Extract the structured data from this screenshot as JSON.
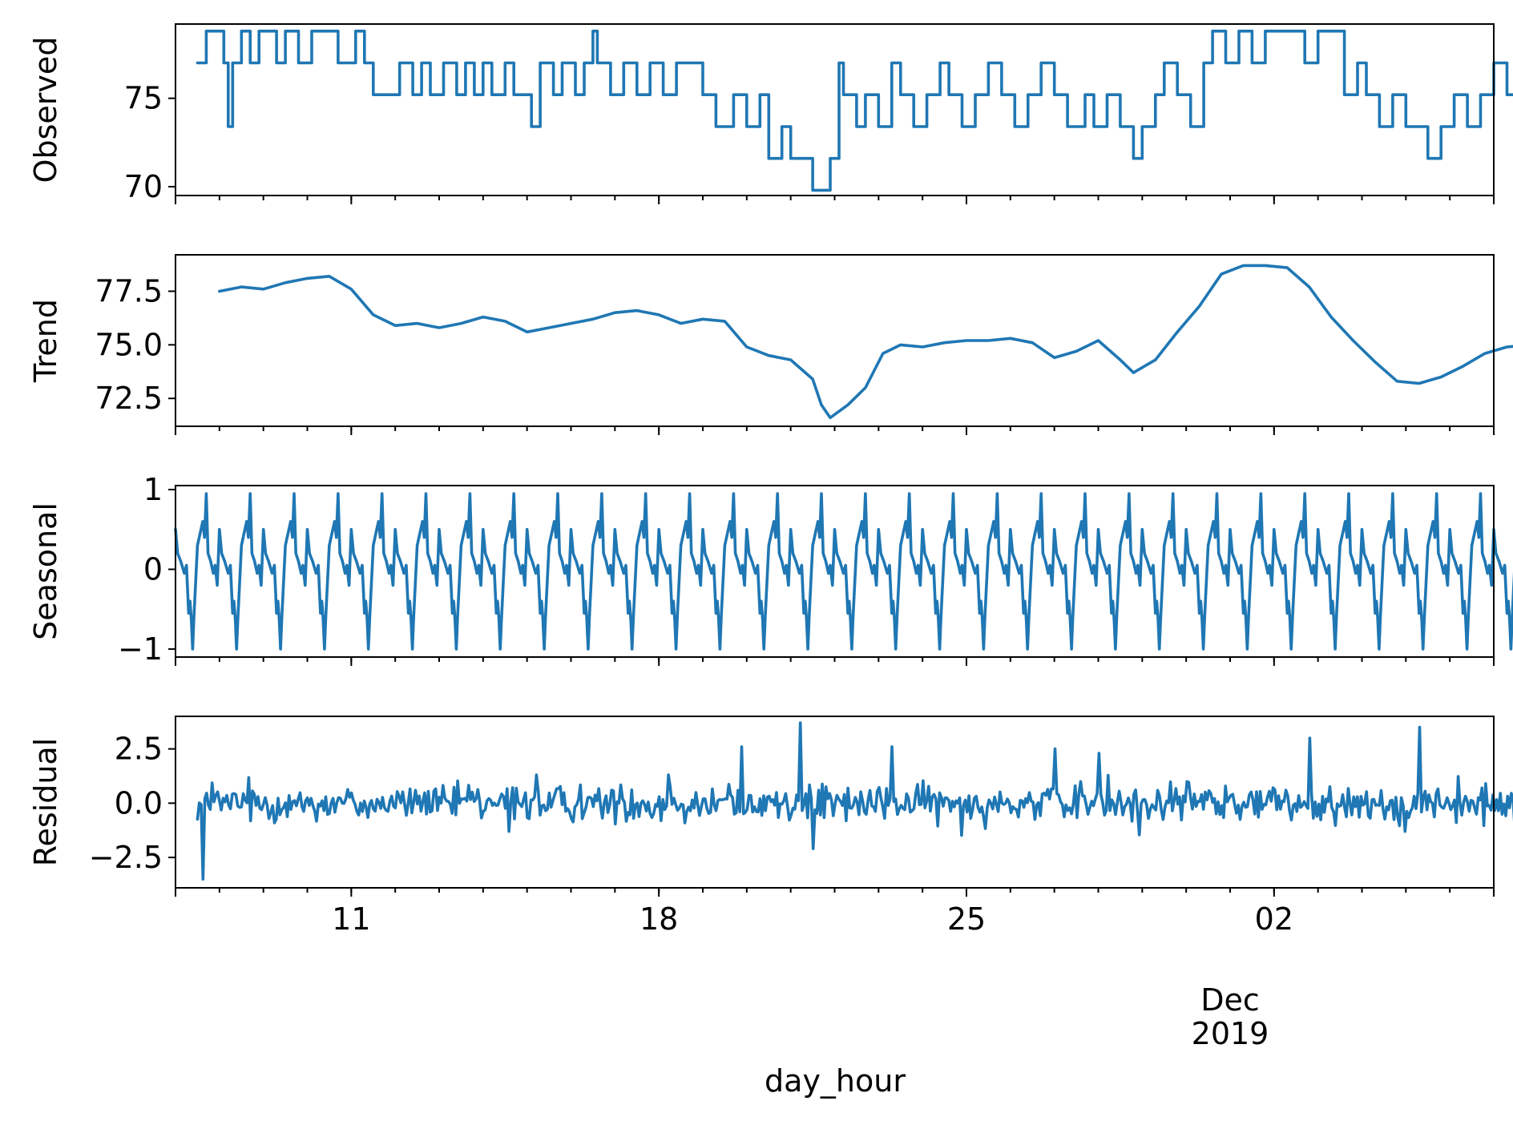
{
  "chart_data": {
    "type": "line",
    "xlabel": "day_hour",
    "x_range": [
      "2019-11-05 00:00",
      "2019-12-05 00:00"
    ],
    "x_data_range": [
      "2019-11-05 12:00",
      "2019-12-04 12:00"
    ],
    "x_ticks": [
      {
        "date": "2019-11-09",
        "label": "11"
      },
      {
        "date": "2019-11-16",
        "label": "18"
      },
      {
        "date": "2019-11-23",
        "label": "25"
      },
      {
        "date": "2019-11-30",
        "label": "02"
      }
    ],
    "x_month_label": {
      "date": "2019-11-29",
      "lines": [
        "Dec",
        "2019"
      ]
    },
    "x_ticks_note_minor": "daily minor ticks",
    "line_color": "#1f77b4",
    "panels": [
      {
        "ylabel": "Observed",
        "ylim": [
          69.5,
          79.2
        ],
        "yticks": [
          {
            "v": 70,
            "label": "70"
          },
          {
            "v": 75,
            "label": "75"
          }
        ],
        "series": {
          "kind": "step",
          "levels": [
            69.8,
            71.6,
            73.4,
            75.2,
            77.0,
            78.8
          ],
          "points": [
            [
              0,
              77.0
            ],
            [
              0.2,
              78.8
            ],
            [
              0.5,
              78.8
            ],
            [
              0.6,
              77.0
            ],
            [
              0.7,
              73.4
            ],
            [
              0.8,
              77.0
            ],
            [
              1.0,
              78.8
            ],
            [
              1.2,
              77.0
            ],
            [
              1.4,
              78.8
            ],
            [
              1.7,
              78.8
            ],
            [
              1.8,
              77.0
            ],
            [
              2.0,
              78.8
            ],
            [
              2.3,
              77.0
            ],
            [
              2.6,
              78.8
            ],
            [
              3.0,
              78.8
            ],
            [
              3.2,
              77.0
            ],
            [
              3.5,
              77.0
            ],
            [
              3.6,
              78.8
            ],
            [
              3.8,
              77.0
            ],
            [
              4.0,
              75.2
            ],
            [
              4.5,
              75.2
            ],
            [
              4.6,
              77.0
            ],
            [
              4.9,
              75.2
            ],
            [
              5.1,
              77.0
            ],
            [
              5.3,
              75.2
            ],
            [
              5.6,
              77.0
            ],
            [
              5.9,
              75.2
            ],
            [
              6.1,
              77.0
            ],
            [
              6.3,
              75.2
            ],
            [
              6.5,
              77.0
            ],
            [
              6.7,
              75.2
            ],
            [
              7.0,
              77.0
            ],
            [
              7.2,
              75.2
            ],
            [
              7.5,
              75.2
            ],
            [
              7.6,
              73.4
            ],
            [
              7.8,
              77.0
            ],
            [
              8.1,
              75.2
            ],
            [
              8.3,
              77.0
            ],
            [
              8.6,
              75.2
            ],
            [
              8.8,
              77.0
            ],
            [
              9.0,
              78.8
            ],
            [
              9.1,
              77.0
            ],
            [
              9.4,
              75.2
            ],
            [
              9.7,
              77.0
            ],
            [
              10.0,
              75.2
            ],
            [
              10.3,
              77.0
            ],
            [
              10.6,
              75.2
            ],
            [
              10.9,
              77.0
            ],
            [
              11.3,
              77.0
            ],
            [
              11.5,
              75.2
            ],
            [
              11.8,
              73.4
            ],
            [
              12.2,
              75.2
            ],
            [
              12.5,
              73.4
            ],
            [
              12.8,
              75.2
            ],
            [
              13.0,
              71.6
            ],
            [
              13.3,
              73.4
            ],
            [
              13.5,
              71.6
            ],
            [
              13.9,
              71.6
            ],
            [
              14.0,
              69.8
            ],
            [
              14.3,
              69.8
            ],
            [
              14.4,
              71.6
            ],
            [
              14.6,
              77.0
            ],
            [
              14.7,
              75.2
            ],
            [
              15.0,
              73.4
            ],
            [
              15.2,
              75.2
            ],
            [
              15.5,
              73.4
            ],
            [
              15.8,
              77.0
            ],
            [
              16.0,
              75.2
            ],
            [
              16.3,
              73.4
            ],
            [
              16.6,
              75.2
            ],
            [
              16.9,
              77.0
            ],
            [
              17.1,
              75.2
            ],
            [
              17.4,
              73.4
            ],
            [
              17.7,
              75.2
            ],
            [
              18.0,
              77.0
            ],
            [
              18.3,
              75.2
            ],
            [
              18.6,
              73.4
            ],
            [
              18.9,
              75.2
            ],
            [
              19.2,
              77.0
            ],
            [
              19.5,
              75.2
            ],
            [
              19.8,
              73.4
            ],
            [
              20.2,
              75.2
            ],
            [
              20.4,
              73.4
            ],
            [
              20.7,
              75.2
            ],
            [
              21.0,
              73.4
            ],
            [
              21.3,
              71.6
            ],
            [
              21.5,
              73.4
            ],
            [
              21.8,
              75.2
            ],
            [
              22.0,
              77.0
            ],
            [
              22.3,
              75.2
            ],
            [
              22.6,
              73.4
            ],
            [
              22.9,
              77.0
            ],
            [
              23.1,
              78.8
            ],
            [
              23.4,
              77.0
            ],
            [
              23.7,
              78.8
            ],
            [
              24.0,
              77.0
            ],
            [
              24.3,
              78.8
            ],
            [
              25.0,
              78.8
            ],
            [
              25.2,
              77.0
            ],
            [
              25.5,
              78.8
            ],
            [
              26.0,
              78.8
            ],
            [
              26.1,
              75.2
            ],
            [
              26.4,
              77.0
            ],
            [
              26.6,
              75.2
            ],
            [
              26.9,
              73.4
            ],
            [
              27.2,
              75.2
            ],
            [
              27.5,
              73.4
            ],
            [
              27.9,
              73.4
            ],
            [
              28.0,
              71.6
            ],
            [
              28.3,
              73.4
            ],
            [
              28.6,
              75.2
            ],
            [
              28.9,
              73.4
            ],
            [
              29.2,
              75.2
            ],
            [
              29.5,
              77.0
            ],
            [
              29.8,
              75.2
            ],
            [
              30.0,
              77.0
            ],
            [
              30.4,
              73.4
            ],
            [
              30.7,
              77.0
            ],
            [
              31.0,
              75.2
            ],
            [
              31.3,
              77.0
            ],
            [
              31.6,
              75.2
            ],
            [
              31.9,
              77.0
            ],
            [
              32.2,
              75.2
            ],
            [
              32.6,
              77.0
            ],
            [
              32.9,
              75.2
            ],
            [
              33.2,
              77.0
            ],
            [
              33.5,
              78.8
            ],
            [
              33.7,
              77.0
            ],
            [
              34.0,
              75.2
            ],
            [
              34.2,
              73.4
            ],
            [
              34.4,
              78.8
            ]
          ]
        }
      },
      {
        "ylabel": "Trend",
        "ylim": [
          71.2,
          79.2
        ],
        "yticks": [
          {
            "v": 72.5,
            "label": "72.5"
          },
          {
            "v": 75.0,
            "label": "75.0"
          },
          {
            "v": 77.5,
            "label": "77.5"
          }
        ],
        "series": {
          "kind": "smooth",
          "points": [
            [
              0.5,
              77.5
            ],
            [
              1,
              77.7
            ],
            [
              1.5,
              77.6
            ],
            [
              2,
              77.9
            ],
            [
              2.5,
              78.1
            ],
            [
              3,
              78.2
            ],
            [
              3.5,
              77.6
            ],
            [
              4,
              76.4
            ],
            [
              4.5,
              75.9
            ],
            [
              5,
              76.0
            ],
            [
              5.5,
              75.8
            ],
            [
              6,
              76.0
            ],
            [
              6.5,
              76.3
            ],
            [
              7,
              76.1
            ],
            [
              7.5,
              75.6
            ],
            [
              8,
              75.8
            ],
            [
              8.5,
              76.0
            ],
            [
              9,
              76.2
            ],
            [
              9.5,
              76.5
            ],
            [
              10,
              76.6
            ],
            [
              10.5,
              76.4
            ],
            [
              11,
              76.0
            ],
            [
              11.5,
              76.2
            ],
            [
              12,
              76.1
            ],
            [
              12.5,
              74.9
            ],
            [
              13,
              74.5
            ],
            [
              13.5,
              74.3
            ],
            [
              14,
              73.4
            ],
            [
              14.2,
              72.2
            ],
            [
              14.4,
              71.6
            ],
            [
              14.8,
              72.2
            ],
            [
              15.2,
              73.0
            ],
            [
              15.6,
              74.6
            ],
            [
              16,
              75.0
            ],
            [
              16.5,
              74.9
            ],
            [
              17,
              75.1
            ],
            [
              17.5,
              75.2
            ],
            [
              18,
              75.2
            ],
            [
              18.5,
              75.3
            ],
            [
              19,
              75.1
            ],
            [
              19.5,
              74.4
            ],
            [
              20,
              74.7
            ],
            [
              20.5,
              75.2
            ],
            [
              21,
              74.3
            ],
            [
              21.3,
              73.7
            ],
            [
              21.8,
              74.3
            ],
            [
              22.3,
              75.6
            ],
            [
              22.8,
              76.8
            ],
            [
              23.3,
              78.3
            ],
            [
              23.8,
              78.7
            ],
            [
              24.3,
              78.7
            ],
            [
              24.8,
              78.6
            ],
            [
              25.3,
              77.7
            ],
            [
              25.8,
              76.3
            ],
            [
              26.3,
              75.2
            ],
            [
              26.8,
              74.2
            ],
            [
              27.3,
              73.3
            ],
            [
              27.8,
              73.2
            ],
            [
              28.3,
              73.5
            ],
            [
              28.8,
              74.0
            ],
            [
              29.3,
              74.6
            ],
            [
              29.8,
              74.9
            ],
            [
              30.3,
              75.0
            ],
            [
              30.8,
              75.1
            ],
            [
              31.3,
              75.5
            ],
            [
              31.8,
              76.0
            ],
            [
              32.3,
              76.4
            ],
            [
              32.8,
              76.5
            ],
            [
              33.3,
              76.6
            ],
            [
              33.8,
              76.7
            ],
            [
              34.3,
              76.4
            ]
          ]
        }
      },
      {
        "ylabel": "Seasonal",
        "ylim": [
          -1.1,
          1.05
        ],
        "yticks": [
          {
            "v": -1,
            "label": "−1"
          },
          {
            "v": 0,
            "label": "0"
          },
          {
            "v": 1,
            "label": "1"
          }
        ],
        "series": {
          "kind": "periodic",
          "period_days": 1,
          "start_day": 0,
          "end_day": 34.5,
          "cycle_points": [
            [
              0,
              0.5
            ],
            [
              0.05,
              0.2
            ],
            [
              0.12,
              0.1
            ],
            [
              0.2,
              -0.05
            ],
            [
              0.25,
              0.05
            ],
            [
              0.3,
              -0.55
            ],
            [
              0.33,
              -0.4
            ],
            [
              0.36,
              -0.62
            ],
            [
              0.39,
              -1.0
            ],
            [
              0.42,
              -0.6
            ],
            [
              0.5,
              0.3
            ],
            [
              0.56,
              0.45
            ],
            [
              0.62,
              0.6
            ],
            [
              0.66,
              0.4
            ],
            [
              0.7,
              0.95
            ],
            [
              0.74,
              0.2
            ],
            [
              0.8,
              0.1
            ],
            [
              0.86,
              -0.05
            ],
            [
              0.9,
              0.05
            ],
            [
              0.95,
              -0.2
            ],
            [
              1.0,
              0.5
            ]
          ]
        }
      },
      {
        "ylabel": "Residual",
        "ylim": [
          -3.9,
          4.0
        ],
        "yticks": [
          {
            "v": -2.5,
            "label": "−2.5"
          },
          {
            "v": 0.0,
            "label": "0.0"
          },
          {
            "v": 2.5,
            "label": "2.5"
          }
        ],
        "series": {
          "kind": "noise",
          "start_day": 0.5,
          "end_day": 34.5,
          "step_days": 0.0417,
          "base_amplitude": 0.8,
          "spikes": [
            [
              0.62,
              -3.5
            ],
            [
              14.2,
              3.7
            ],
            [
              12.9,
              2.6
            ],
            [
              16.3,
              2.6
            ],
            [
              20.0,
              2.5
            ],
            [
              21.0,
              2.3
            ],
            [
              25.8,
              3.0
            ],
            [
              28.3,
              3.5
            ],
            [
              11.2,
              1.3
            ],
            [
              23.0,
              1.0
            ],
            [
              14.5,
              -2.1
            ],
            [
              8.2,
              1.3
            ],
            [
              7.6,
              -1.3
            ],
            [
              32.6,
              -1.8
            ],
            [
              33.5,
              -1.3
            ]
          ]
        }
      }
    ]
  }
}
